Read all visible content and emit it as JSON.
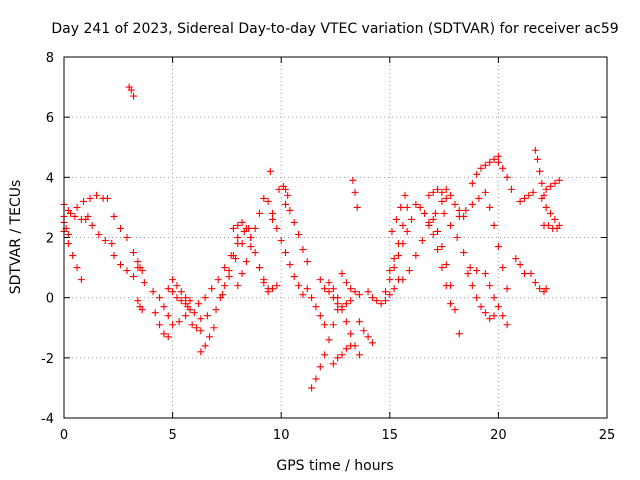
{
  "chart_data": {
    "type": "scatter",
    "title": "Day 241 of 2023, Sidereal Day-to-day VTEC variation (SDTVAR) for receiver ac59",
    "xlabel": "GPS time / hours",
    "ylabel": "SDTVAR / TECUs",
    "xlim": [
      0,
      25
    ],
    "ylim": [
      -4,
      8
    ],
    "x_ticks": [
      "0",
      "5",
      "10",
      "15",
      "20",
      "25"
    ],
    "y_ticks": [
      "-4",
      "-2",
      "0",
      "2",
      "4",
      "6",
      "8"
    ],
    "grid": true,
    "marker": "+",
    "color": "#ff0000",
    "series": [
      {
        "name": "s01",
        "x": [
          0.0,
          0.2,
          0.4,
          0.6,
          0.8
        ],
        "y": [
          2.2,
          1.8,
          1.4,
          1.0,
          0.6
        ]
      },
      {
        "name": "s02",
        "x": [
          0.0,
          0.3,
          0.6,
          0.9,
          1.2,
          1.5,
          1.8,
          2.0
        ],
        "y": [
          2.7,
          2.8,
          3.0,
          3.2,
          3.3,
          3.4,
          3.3,
          3.3
        ]
      },
      {
        "name": "s03",
        "x": [
          0.0,
          0.2,
          0.5,
          0.8,
          1.1
        ],
        "y": [
          3.1,
          2.9,
          2.7,
          2.6,
          2.7
        ]
      },
      {
        "name": "s04",
        "x": [
          0.0,
          0.1,
          0.2
        ],
        "y": [
          2.5,
          2.3,
          2.1
        ]
      },
      {
        "name": "s05",
        "x": [
          1.0,
          1.3,
          1.6,
          1.9,
          2.2
        ],
        "y": [
          2.6,
          2.4,
          2.1,
          1.9,
          1.8
        ]
      },
      {
        "name": "s06",
        "x": [
          2.3,
          2.6,
          2.9,
          3.2,
          3.4
        ],
        "y": [
          2.7,
          2.3,
          2.0,
          1.5,
          1.0
        ]
      },
      {
        "name": "s07",
        "x": [
          2.3,
          2.6,
          2.9,
          3.2,
          3.5
        ],
        "y": [
          1.4,
          1.1,
          0.9,
          0.7,
          1.0
        ]
      },
      {
        "name": "s08",
        "x": [
          3.0,
          3.1,
          3.2
        ],
        "y": [
          7.0,
          6.9,
          6.7
        ]
      },
      {
        "name": "s09",
        "x": [
          3.4,
          3.6,
          3.7
        ],
        "y": [
          1.2,
          0.9,
          0.5
        ]
      },
      {
        "name": "s10",
        "x": [
          3.4,
          3.5,
          3.6
        ],
        "y": [
          -0.1,
          -0.3,
          -0.4
        ]
      },
      {
        "name": "s11",
        "x": [
          4.1,
          4.4,
          4.6,
          4.8,
          5.0,
          5.3,
          5.6,
          5.8
        ],
        "y": [
          0.2,
          0.0,
          -0.3,
          -0.6,
          -0.9,
          -0.8,
          -0.6,
          -0.4
        ]
      },
      {
        "name": "s12",
        "x": [
          4.2,
          4.4,
          4.6,
          4.8
        ],
        "y": [
          -0.5,
          -0.9,
          -1.2,
          -1.3
        ]
      },
      {
        "name": "s13",
        "x": [
          4.8,
          5.0,
          5.2,
          5.4,
          5.6,
          5.8
        ],
        "y": [
          0.3,
          0.2,
          0.0,
          -0.1,
          -0.2,
          -0.1
        ]
      },
      {
        "name": "s14",
        "x": [
          5.0,
          5.2,
          5.4,
          5.6
        ],
        "y": [
          0.6,
          0.4,
          0.2,
          0.0
        ]
      },
      {
        "name": "s15",
        "x": [
          5.7,
          6.0,
          6.3,
          6.6
        ],
        "y": [
          -0.3,
          -0.5,
          -0.7,
          -0.6
        ]
      },
      {
        "name": "s16",
        "x": [
          5.9,
          6.1,
          6.3
        ],
        "y": [
          -0.9,
          -1.0,
          -1.1
        ]
      },
      {
        "name": "s17",
        "x": [
          6.2,
          6.5,
          6.8,
          7.1,
          7.4,
          7.7,
          8.0,
          8.3
        ],
        "y": [
          -0.2,
          0.0,
          0.3,
          0.6,
          1.0,
          1.4,
          1.8,
          2.2
        ]
      },
      {
        "name": "s18",
        "x": [
          6.3,
          6.5,
          6.7,
          6.9
        ],
        "y": [
          -1.8,
          -1.6,
          -1.3,
          -1.0
        ]
      },
      {
        "name": "s19",
        "x": [
          7.0,
          7.3,
          7.6,
          7.9,
          8.2,
          8.5
        ],
        "y": [
          -0.4,
          0.1,
          0.7,
          1.3,
          1.8,
          2.3
        ]
      },
      {
        "name": "s20",
        "x": [
          7.2,
          7.4,
          7.6,
          7.8,
          8.0
        ],
        "y": [
          0.0,
          0.4,
          0.9,
          1.4,
          2.0
        ]
      },
      {
        "name": "s21",
        "x": [
          7.8,
          8.0,
          8.2,
          8.4,
          8.6
        ],
        "y": [
          2.3,
          2.4,
          2.5,
          2.3,
          2.0
        ]
      },
      {
        "name": "s22",
        "x": [
          8.0,
          8.2,
          8.4,
          8.6,
          8.8,
          9.0,
          9.2
        ],
        "y": [
          0.4,
          0.8,
          1.2,
          1.7,
          2.3,
          2.8,
          3.3
        ]
      },
      {
        "name": "s23",
        "x": [
          8.6,
          8.8,
          9.0,
          9.2,
          9.4
        ],
        "y": [
          2.0,
          1.5,
          1.0,
          0.6,
          0.2
        ]
      },
      {
        "name": "s24",
        "x": [
          9.0,
          9.2,
          9.4,
          9.6,
          9.8
        ],
        "y": [
          1.0,
          0.5,
          0.3,
          0.3,
          0.4
        ]
      },
      {
        "name": "s25",
        "x": [
          9.4,
          9.5,
          9.6
        ],
        "y": [
          3.2,
          4.2,
          2.8
        ]
      },
      {
        "name": "s26",
        "x": [
          9.6,
          9.8,
          10.0,
          10.2,
          10.4,
          10.6,
          10.8,
          11.0
        ],
        "y": [
          2.6,
          2.3,
          1.9,
          1.5,
          1.1,
          0.7,
          0.4,
          0.1
        ]
      },
      {
        "name": "s27",
        "x": [
          9.9,
          10.1,
          10.2,
          10.3
        ],
        "y": [
          3.6,
          3.7,
          3.6,
          3.4
        ]
      },
      {
        "name": "s28",
        "x": [
          10.2,
          10.4,
          10.6,
          10.8,
          11.0,
          11.2
        ],
        "y": [
          3.1,
          2.9,
          2.5,
          2.1,
          1.6,
          1.2
        ]
      },
      {
        "name": "s29",
        "x": [
          11.2,
          11.4,
          11.6,
          11.8,
          12.0
        ],
        "y": [
          0.3,
          0.0,
          -0.3,
          -0.6,
          -0.9
        ]
      },
      {
        "name": "s30",
        "x": [
          11.4,
          11.6,
          11.8,
          12.0,
          12.2,
          12.4,
          12.6
        ],
        "y": [
          -3.0,
          -2.7,
          -2.3,
          -1.9,
          -1.4,
          -0.9,
          -0.4
        ]
      },
      {
        "name": "s31",
        "x": [
          11.8,
          12.0,
          12.2,
          12.4,
          12.6,
          12.8,
          13.0,
          13.2
        ],
        "y": [
          0.6,
          0.3,
          0.2,
          0.0,
          -0.2,
          -0.3,
          -0.2,
          -0.1
        ]
      },
      {
        "name": "s32",
        "x": [
          12.2,
          12.4,
          12.6,
          12.8,
          13.0,
          13.2,
          13.4,
          13.6
        ],
        "y": [
          0.5,
          0.3,
          0.0,
          -0.4,
          -0.8,
          -1.2,
          -1.6,
          -1.9
        ]
      },
      {
        "name": "s33",
        "x": [
          12.4,
          12.6,
          12.8,
          13.0,
          13.2
        ],
        "y": [
          -2.2,
          -2.0,
          -1.9,
          -1.7,
          -1.6
        ]
      },
      {
        "name": "s34",
        "x": [
          12.8,
          13.0,
          13.2,
          13.4,
          13.6
        ],
        "y": [
          0.8,
          0.5,
          0.3,
          0.2,
          0.1
        ]
      },
      {
        "name": "s35",
        "x": [
          13.3,
          13.4,
          13.5
        ],
        "y": [
          3.9,
          3.5,
          3.0
        ]
      },
      {
        "name": "s36",
        "x": [
          13.6,
          13.8,
          14.0,
          14.2
        ],
        "y": [
          -0.8,
          -1.1,
          -1.3,
          -1.5
        ]
      },
      {
        "name": "s37",
        "x": [
          14.0,
          14.2,
          14.4,
          14.6,
          14.8,
          15.0,
          15.2,
          15.4
        ],
        "y": [
          0.2,
          0.0,
          -0.1,
          -0.2,
          -0.1,
          0.1,
          0.3,
          0.6
        ]
      },
      {
        "name": "s38",
        "x": [
          14.8,
          15.0,
          15.2,
          15.4,
          15.6,
          15.8,
          16.0
        ],
        "y": [
          0.2,
          0.6,
          1.0,
          1.4,
          1.8,
          2.2,
          2.6
        ]
      },
      {
        "name": "s39",
        "x": [
          15.0,
          15.2,
          15.4,
          15.6,
          15.8
        ],
        "y": [
          0.9,
          1.3,
          1.8,
          2.4,
          3.0
        ]
      },
      {
        "name": "s40",
        "x": [
          15.1,
          15.3,
          15.5,
          15.7
        ],
        "y": [
          2.2,
          2.6,
          3.0,
          3.4
        ]
      },
      {
        "name": "s41",
        "x": [
          15.6,
          15.9,
          16.2,
          16.5,
          16.8,
          17.1,
          17.4
        ],
        "y": [
          0.6,
          0.9,
          1.4,
          1.9,
          2.4,
          2.8,
          3.2
        ]
      },
      {
        "name": "s42",
        "x": [
          16.2,
          16.4,
          16.6,
          16.8,
          17.0,
          17.2,
          17.4,
          17.6,
          17.8
        ],
        "y": [
          3.1,
          3.0,
          2.8,
          2.5,
          2.1,
          1.6,
          1.0,
          0.4,
          -0.2
        ]
      },
      {
        "name": "s43",
        "x": [
          17.0,
          17.2,
          17.4,
          17.6,
          17.8,
          18.0,
          18.2
        ],
        "y": [
          2.6,
          2.2,
          1.7,
          1.1,
          0.4,
          -0.4,
          -1.2
        ]
      },
      {
        "name": "s44",
        "x": [
          16.8,
          17.0,
          17.2,
          17.4,
          17.6
        ],
        "y": [
          3.4,
          3.5,
          3.6,
          3.5,
          3.3
        ]
      },
      {
        "name": "s45",
        "x": [
          17.5,
          17.8,
          18.1,
          18.4,
          18.7,
          19.0
        ],
        "y": [
          2.8,
          2.4,
          2.0,
          1.5,
          1.0,
          0.9
        ]
      },
      {
        "name": "s46",
        "x": [
          17.6,
          17.8,
          18.0,
          18.2,
          18.4
        ],
        "y": [
          3.6,
          3.4,
          3.1,
          2.9,
          2.7
        ]
      },
      {
        "name": "s47",
        "x": [
          18.2,
          18.5,
          18.8,
          19.1,
          19.4
        ],
        "y": [
          2.7,
          2.9,
          3.1,
          3.3,
          3.5
        ]
      },
      {
        "name": "s48",
        "x": [
          18.8,
          19.0,
          19.2,
          19.4,
          19.6,
          19.8,
          20.0
        ],
        "y": [
          3.8,
          4.1,
          4.3,
          4.4,
          4.5,
          4.6,
          4.7
        ]
      },
      {
        "name": "s49",
        "x": [
          18.6,
          18.8,
          19.0,
          19.2,
          19.4,
          19.6,
          19.8
        ],
        "y": [
          0.8,
          0.4,
          0.0,
          -0.3,
          -0.5,
          -0.7,
          -0.6
        ]
      },
      {
        "name": "s50",
        "x": [
          19.4,
          19.6,
          19.8,
          20.0,
          20.2,
          20.4
        ],
        "y": [
          0.8,
          0.4,
          0.0,
          -0.3,
          -0.6,
          -0.9
        ]
      },
      {
        "name": "s51",
        "x": [
          19.6,
          19.8,
          20.0,
          20.2,
          20.4
        ],
        "y": [
          3.0,
          2.4,
          1.7,
          1.0,
          0.3
        ]
      },
      {
        "name": "s52",
        "x": [
          20.0,
          20.2,
          20.4,
          20.6
        ],
        "y": [
          4.5,
          4.3,
          4.0,
          3.6
        ]
      },
      {
        "name": "s53",
        "x": [
          20.8,
          21.0,
          21.2
        ],
        "y": [
          1.3,
          1.1,
          0.8
        ]
      },
      {
        "name": "s54",
        "x": [
          21.0,
          21.2,
          21.4,
          21.6
        ],
        "y": [
          3.2,
          3.3,
          3.4,
          3.5
        ]
      },
      {
        "name": "s55",
        "x": [
          21.7,
          21.8,
          21.9,
          22.0,
          22.1
        ],
        "y": [
          4.9,
          4.6,
          4.2,
          3.8,
          3.4
        ]
      },
      {
        "name": "s56",
        "x": [
          21.5,
          21.7,
          21.9,
          22.1,
          22.2
        ],
        "y": [
          0.8,
          0.5,
          0.3,
          0.2,
          0.3
        ]
      },
      {
        "name": "s57",
        "x": [
          22.0,
          22.2,
          22.4,
          22.6,
          22.8
        ],
        "y": [
          3.3,
          3.0,
          2.8,
          2.6,
          2.4
        ]
      },
      {
        "name": "s58",
        "x": [
          22.1,
          22.3,
          22.5,
          22.7
        ],
        "y": [
          2.4,
          2.4,
          2.3,
          2.3
        ]
      },
      {
        "name": "s59",
        "x": [
          22.2,
          22.4,
          22.6,
          22.8
        ],
        "y": [
          3.6,
          3.7,
          3.8,
          3.9
        ]
      }
    ]
  }
}
